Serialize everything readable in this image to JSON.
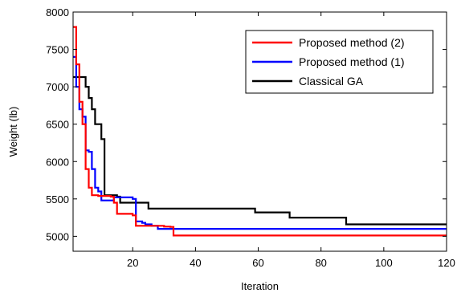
{
  "chart_data": {
    "type": "line",
    "title": "",
    "xlabel": "Iteration",
    "ylabel": "Weight (lb)",
    "xlim": [
      1,
      120
    ],
    "ylim": [
      4800,
      8000
    ],
    "xticks": [
      20,
      40,
      60,
      80,
      100,
      120
    ],
    "yticks": [
      5000,
      5500,
      6000,
      6500,
      7000,
      7500,
      8000
    ],
    "grid": false,
    "legend": "top-right",
    "series": [
      {
        "name": "Proposed method (2)",
        "color": "#ff0000",
        "points": [
          [
            1,
            7800
          ],
          [
            2,
            7300
          ],
          [
            3,
            6800
          ],
          [
            4,
            6500
          ],
          [
            5,
            5900
          ],
          [
            6,
            5650
          ],
          [
            7,
            5550
          ],
          [
            9,
            5540
          ],
          [
            12,
            5540
          ],
          [
            13,
            5530
          ],
          [
            14,
            5450
          ],
          [
            15,
            5300
          ],
          [
            20,
            5280
          ],
          [
            21,
            5140
          ],
          [
            30,
            5130
          ],
          [
            32,
            5125
          ],
          [
            33,
            5010
          ],
          [
            120,
            5010
          ]
        ]
      },
      {
        "name": "Proposed method (1)",
        "color": "#0000ff",
        "points": [
          [
            1,
            7400
          ],
          [
            2,
            7000
          ],
          [
            3,
            6700
          ],
          [
            4,
            6600
          ],
          [
            5,
            6150
          ],
          [
            6,
            6130
          ],
          [
            7,
            5900
          ],
          [
            8,
            5650
          ],
          [
            9,
            5600
          ],
          [
            10,
            5480
          ],
          [
            13,
            5480
          ],
          [
            14,
            5520
          ],
          [
            20,
            5500
          ],
          [
            21,
            5200
          ],
          [
            23,
            5180
          ],
          [
            24,
            5160
          ],
          [
            26,
            5140
          ],
          [
            28,
            5100
          ],
          [
            120,
            5100
          ]
        ]
      },
      {
        "name": "Classical GA",
        "color": "#000000",
        "points": [
          [
            1,
            7130
          ],
          [
            4,
            7130
          ],
          [
            5,
            7000
          ],
          [
            6,
            6850
          ],
          [
            7,
            6700
          ],
          [
            8,
            6500
          ],
          [
            10,
            6300
          ],
          [
            11,
            5550
          ],
          [
            12,
            5550
          ],
          [
            15,
            5530
          ],
          [
            16,
            5450
          ],
          [
            24,
            5450
          ],
          [
            25,
            5370
          ],
          [
            58,
            5370
          ],
          [
            59,
            5320
          ],
          [
            69,
            5320
          ],
          [
            70,
            5250
          ],
          [
            87,
            5250
          ],
          [
            88,
            5160
          ],
          [
            120,
            5160
          ]
        ]
      }
    ]
  }
}
